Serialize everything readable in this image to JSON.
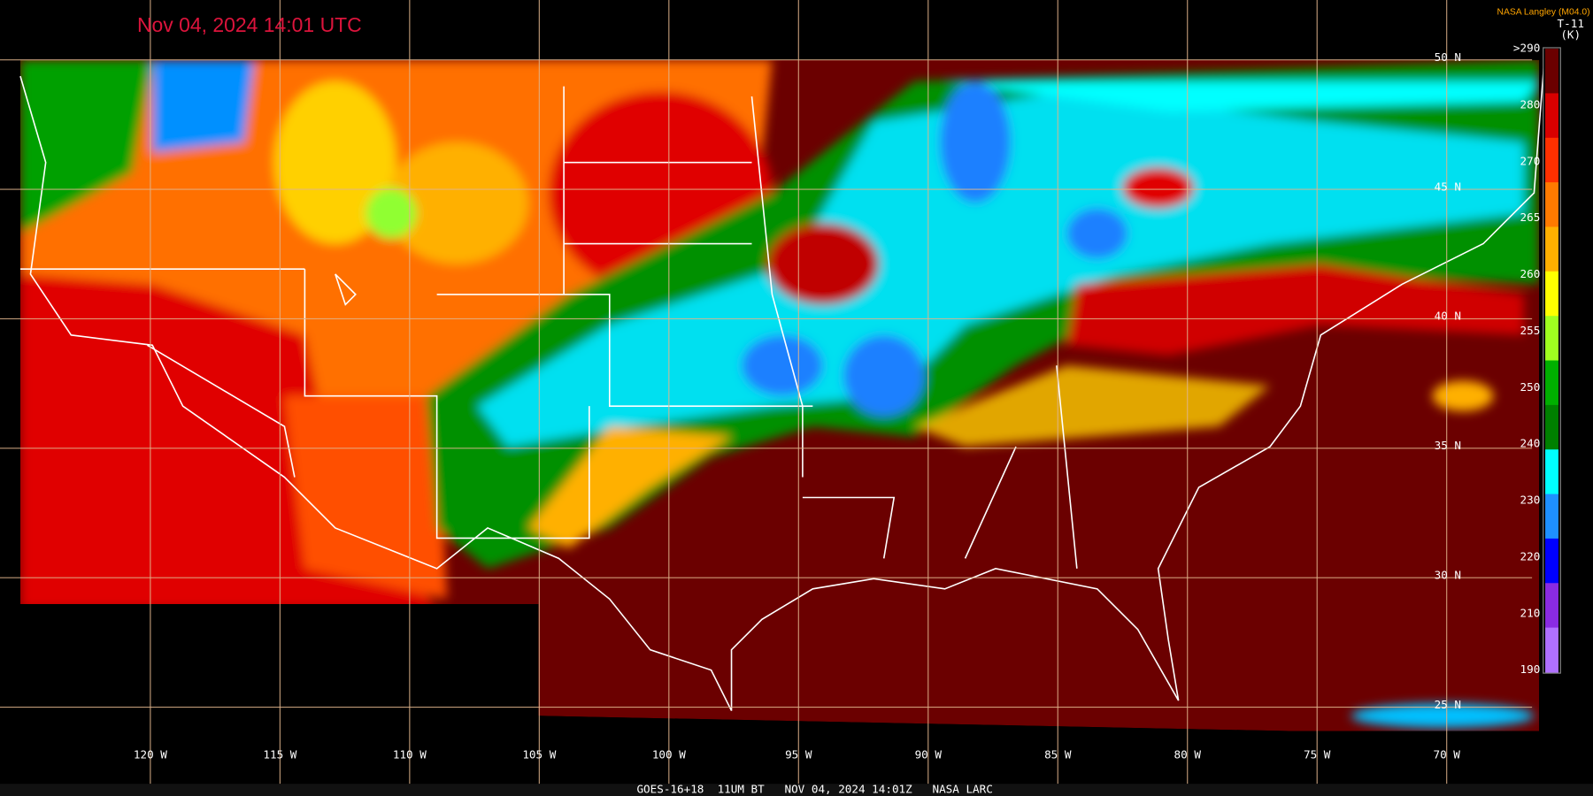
{
  "header": {
    "title": "Nov 04, 2024 14:01 UTC",
    "credit": "NASA Langley (M04.0)"
  },
  "grid": {
    "longitudes": [
      "120 W",
      "115 W",
      "110 W",
      "105 W",
      "100 W",
      "95 W",
      "90 W",
      "85 W",
      "80 W",
      "75 W",
      "70 W"
    ],
    "latitudes": [
      "50 N",
      "45 N",
      "40 N",
      "35 N",
      "30 N",
      "25 N"
    ]
  },
  "colorbar": {
    "title": "T-11",
    "unit": "(K)",
    "labels": [
      ">290",
      "280",
      "270",
      "265",
      "260",
      "255",
      "250",
      "240",
      "230",
      "220",
      "210",
      "190"
    ],
    "colors": [
      "#6b0000",
      "#d80000",
      "#ff3000",
      "#ff7a00",
      "#ffb000",
      "#ffff00",
      "#a0ff20",
      "#00b000",
      "#008000",
      "#00ffff",
      "#1e90ff",
      "#0000ff",
      "#8a2be2",
      "#b070ff"
    ]
  },
  "footer": "GOES-16+18  11UM BT   NOV 04, 2024 14:01Z   NASA LARC"
}
